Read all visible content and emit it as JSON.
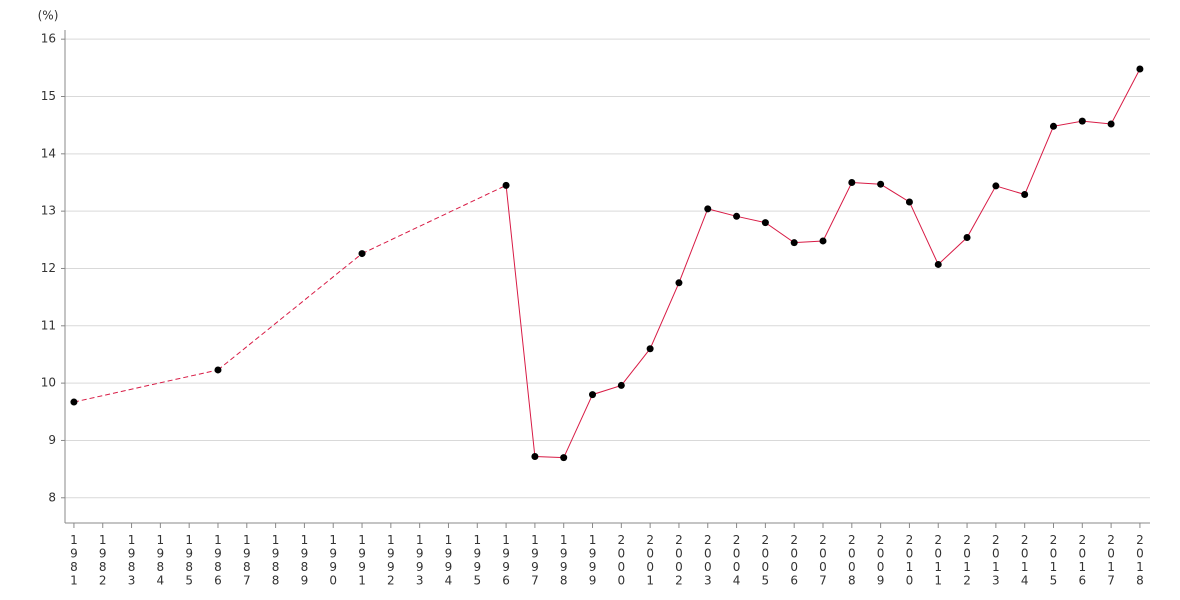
{
  "chart_data": {
    "type": "line",
    "y_label": "(%)",
    "x": [
      1981,
      1986,
      1991,
      1996,
      1997,
      1998,
      1999,
      2000,
      2001,
      2002,
      2003,
      2004,
      2005,
      2006,
      2007,
      2008,
      2009,
      2010,
      2011,
      2012,
      2013,
      2014,
      2015,
      2016,
      2017,
      2018
    ],
    "series": [
      {
        "color": "#d81b45",
        "values": [
          9.67,
          10.23,
          12.26,
          13.45,
          8.72,
          8.7,
          9.8,
          9.96,
          10.6,
          11.75,
          13.04,
          12.91,
          12.8,
          12.45,
          12.48,
          13.5,
          13.47,
          13.16,
          12.07,
          12.54,
          13.44,
          13.29,
          14.48,
          14.57,
          14.52,
          15.48
        ]
      }
    ],
    "marker_color": "#000000",
    "xlim": [
      1980.69,
      2018.35
    ],
    "xticks": [
      1981,
      1982,
      1983,
      1984,
      1985,
      1986,
      1987,
      1988,
      1989,
      1990,
      1991,
      1992,
      1993,
      1994,
      1995,
      1996,
      1997,
      1998,
      1999,
      2000,
      2001,
      2002,
      2003,
      2004,
      2005,
      2006,
      2007,
      2008,
      2009,
      2010,
      2011,
      2012,
      2013,
      2014,
      2015,
      2016,
      2017,
      2018
    ],
    "ylim": [
      7.56,
      16.16
    ],
    "yticks": [
      8,
      9,
      10,
      11,
      12,
      13,
      14,
      15,
      16
    ],
    "grid": true
  }
}
